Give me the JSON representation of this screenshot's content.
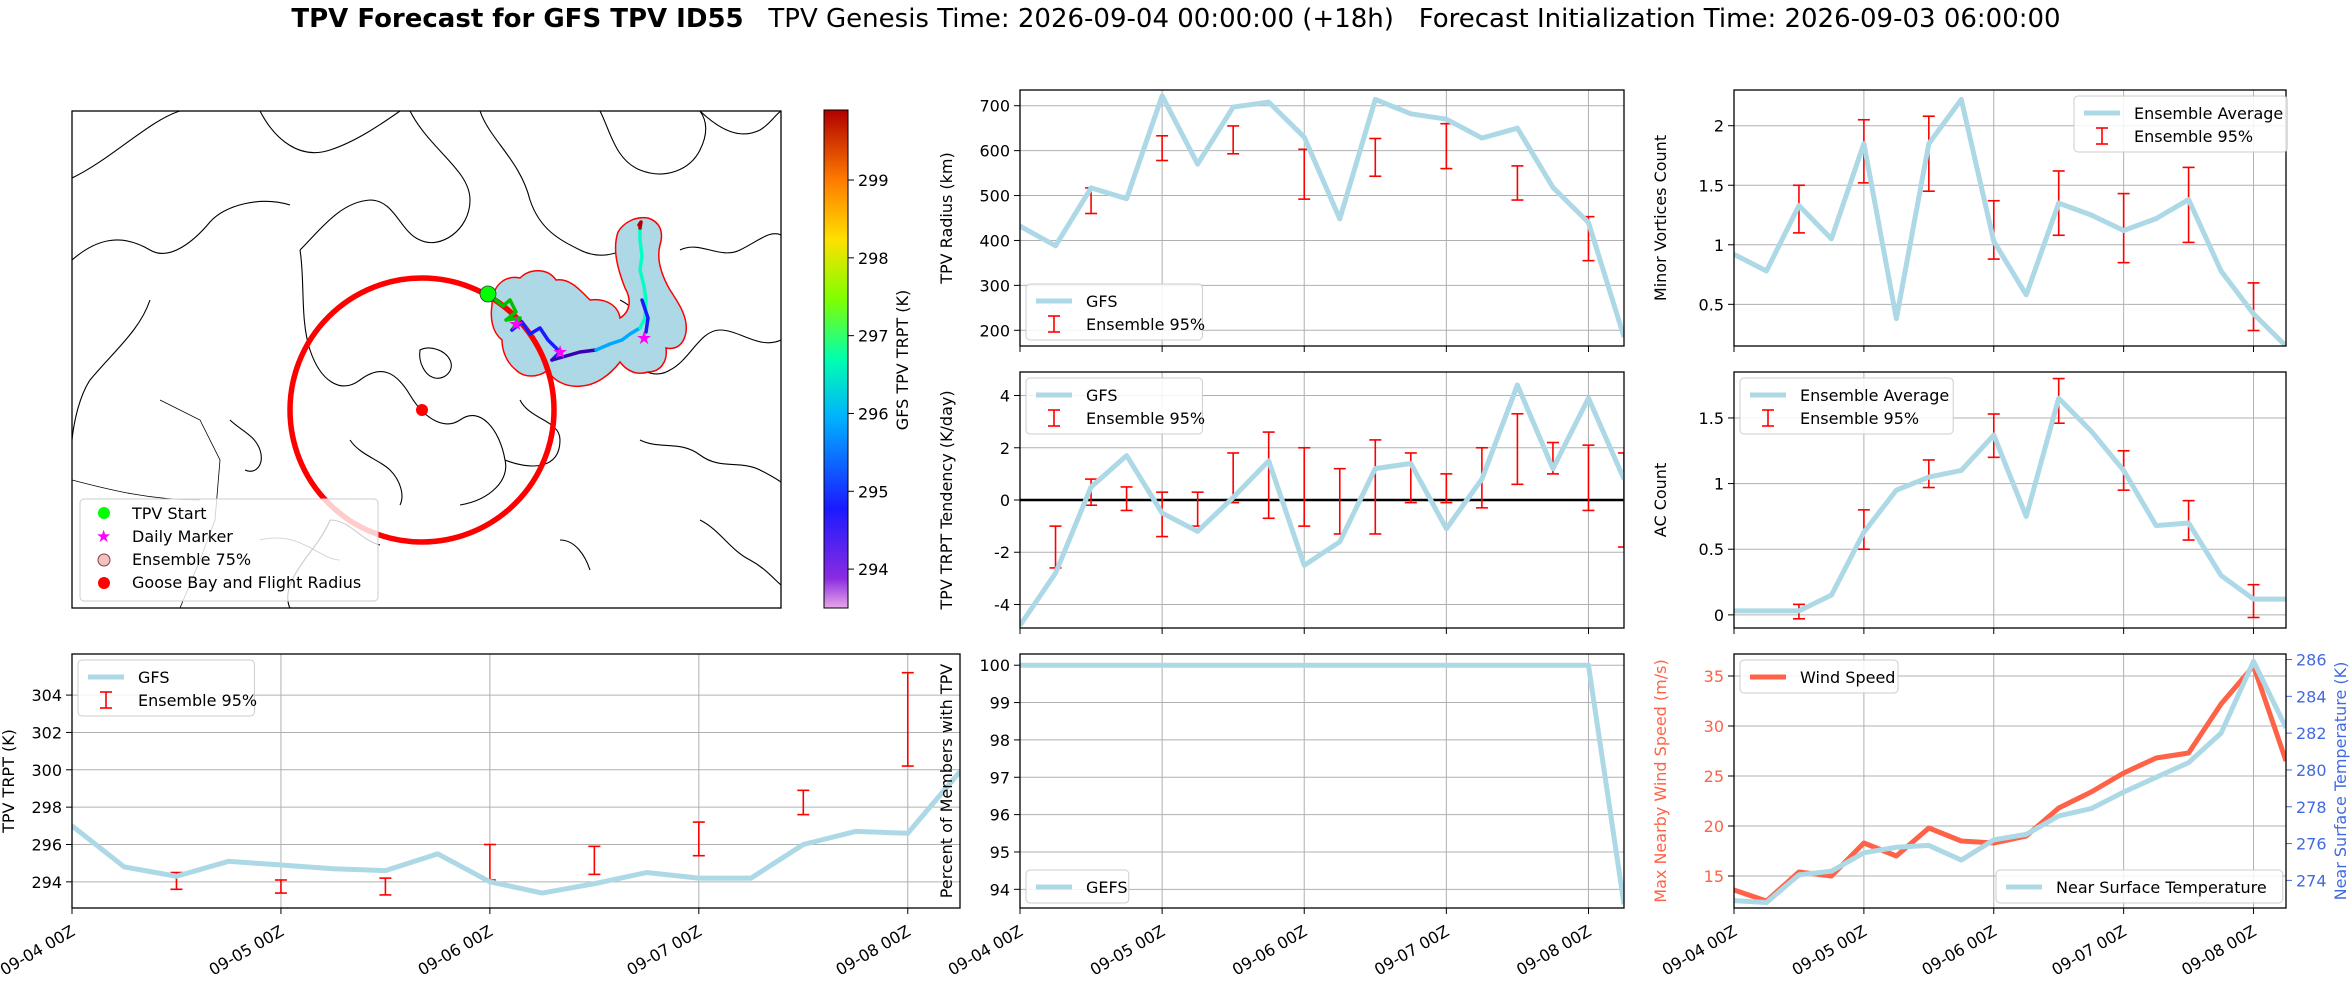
{
  "header": {
    "title_bold": "TPV Forecast for GFS TPV ID55",
    "title_rest": "   TPV Genesis Time: 2026-09-04 00:00:00 (+18h)   Forecast Initialization Time: 2026-09-03 06:00:00"
  },
  "colors": {
    "gfs_line": "#add8e6",
    "errorbar": "#ff0000",
    "wind": "#ff6347",
    "temp_axis": "#4169e1",
    "zero_line": "#000000",
    "radius_circle": "#ff0000"
  },
  "map": {
    "colorbar_label": "GFS TPV TRPT (K)",
    "colorbar_ticks": [
      "294",
      "295",
      "296",
      "297",
      "298",
      "299"
    ],
    "colorbar_range": [
      293.5,
      299.9
    ],
    "legend": [
      "TPV Start",
      "Daily Marker",
      "Ensemble 75%",
      "Goose Bay and Flight Radius"
    ]
  },
  "chart_data": [
    {
      "id": "radius",
      "type": "line",
      "ylabel": "TPV Radius (km)",
      "x": [
        "2026-09-04 00Z",
        "2026-09-04 06Z",
        "2026-09-04 12Z",
        "2026-09-04 18Z",
        "2026-09-05 00Z",
        "2026-09-05 06Z",
        "2026-09-05 12Z",
        "2026-09-05 18Z",
        "2026-09-06 00Z",
        "2026-09-06 06Z",
        "2026-09-06 12Z",
        "2026-09-06 18Z",
        "2026-09-07 00Z",
        "2026-09-07 06Z",
        "2026-09-07 12Z",
        "2026-09-07 18Z",
        "2026-09-08 00Z",
        "2026-09-08 06Z"
      ],
      "ylim": [
        165,
        735
      ],
      "yticks": [
        200,
        300,
        400,
        500,
        600,
        700
      ],
      "series": [
        {
          "name": "GFS",
          "values": [
            432,
            388,
            517,
            493,
            722,
            570,
            697,
            708,
            630,
            448,
            714,
            682,
            670,
            628,
            650,
            518,
            440,
            185
          ]
        }
      ],
      "errorbars": [
        [
          null,
          null
        ],
        [
          null,
          null
        ],
        [
          460,
          517
        ],
        [
          null,
          null
        ],
        [
          578,
          633
        ],
        [
          null,
          null
        ],
        [
          593,
          655
        ],
        [
          null,
          null
        ],
        [
          492,
          603
        ],
        [
          null,
          null
        ],
        [
          543,
          627
        ],
        [
          null,
          null
        ],
        [
          560,
          660
        ],
        [
          null,
          null
        ],
        [
          490,
          566
        ],
        [
          null,
          null
        ],
        [
          355,
          453
        ],
        [
          null,
          null
        ]
      ],
      "legend": {
        "line": "GFS",
        "errorbar": "Ensemble 95%",
        "position": "lower left"
      }
    },
    {
      "id": "minor",
      "type": "line",
      "ylabel": "Minor Vortices Count",
      "x": [
        "2026-09-04 00Z",
        "2026-09-04 06Z",
        "2026-09-04 12Z",
        "2026-09-04 18Z",
        "2026-09-05 00Z",
        "2026-09-05 06Z",
        "2026-09-05 12Z",
        "2026-09-05 18Z",
        "2026-09-06 00Z",
        "2026-09-06 06Z",
        "2026-09-06 12Z",
        "2026-09-06 18Z",
        "2026-09-07 00Z",
        "2026-09-07 06Z",
        "2026-09-07 12Z",
        "2026-09-07 18Z",
        "2026-09-08 00Z",
        "2026-09-08 06Z"
      ],
      "ylim": [
        0.15,
        2.3
      ],
      "yticks": [
        0.5,
        1.0,
        1.5,
        2.0
      ],
      "series": [
        {
          "name": "Ensemble Average",
          "values": [
            0.92,
            0.78,
            1.33,
            1.05,
            1.85,
            0.38,
            1.85,
            2.22,
            1.03,
            0.58,
            1.35,
            1.25,
            1.12,
            1.22,
            1.38,
            0.78,
            0.42,
            0.15
          ]
        }
      ],
      "errorbars": [
        [
          null,
          null
        ],
        [
          null,
          null
        ],
        [
          1.1,
          1.5
        ],
        [
          null,
          null
        ],
        [
          1.52,
          2.05
        ],
        [
          null,
          null
        ],
        [
          1.45,
          2.08
        ],
        [
          null,
          null
        ],
        [
          0.88,
          1.37
        ],
        [
          null,
          null
        ],
        [
          1.08,
          1.62
        ],
        [
          null,
          null
        ],
        [
          0.85,
          1.43
        ],
        [
          null,
          null
        ],
        [
          1.02,
          1.65
        ],
        [
          null,
          null
        ],
        [
          0.28,
          0.68
        ],
        [
          null,
          null
        ]
      ],
      "legend": {
        "line": "Ensemble Average",
        "errorbar": "Ensemble 95%",
        "position": "upper right"
      }
    },
    {
      "id": "tendency",
      "type": "line",
      "ylabel": "TPV TRPT Tendency (K/day)",
      "x": [
        "2026-09-04 00Z",
        "2026-09-04 06Z",
        "2026-09-04 12Z",
        "2026-09-04 18Z",
        "2026-09-05 00Z",
        "2026-09-05 06Z",
        "2026-09-05 12Z",
        "2026-09-05 18Z",
        "2026-09-06 00Z",
        "2026-09-06 06Z",
        "2026-09-06 12Z",
        "2026-09-06 18Z",
        "2026-09-07 00Z",
        "2026-09-07 06Z",
        "2026-09-07 12Z",
        "2026-09-07 18Z",
        "2026-09-08 00Z",
        "2026-09-08 06Z"
      ],
      "ylim": [
        -4.9,
        4.9
      ],
      "yticks": [
        -4,
        -2,
        0,
        2,
        4
      ],
      "series": [
        {
          "name": "GFS",
          "values": [
            -4.8,
            -2.8,
            0.5,
            1.7,
            -0.5,
            -1.2,
            0.1,
            1.5,
            -2.5,
            -1.6,
            1.2,
            1.4,
            -1.1,
            0.8,
            4.4,
            1.2,
            3.9,
            0.8
          ]
        }
      ],
      "errorbars": [
        [
          null,
          null
        ],
        [
          -2.6,
          -1.0
        ],
        [
          -0.2,
          0.8
        ],
        [
          -0.4,
          0.5
        ],
        [
          -1.4,
          0.3
        ],
        [
          -1.0,
          0.3
        ],
        [
          -0.1,
          1.8
        ],
        [
          -0.7,
          2.6
        ],
        [
          -1.0,
          2.0
        ],
        [
          -1.3,
          1.2
        ],
        [
          -1.3,
          2.3
        ],
        [
          -0.1,
          1.8
        ],
        [
          -0.1,
          1.0
        ],
        [
          -0.3,
          2.0
        ],
        [
          0.6,
          3.3
        ],
        [
          1.0,
          2.2
        ],
        [
          -0.4,
          2.1
        ],
        [
          -1.8,
          1.8
        ]
      ],
      "legend": {
        "line": "GFS",
        "errorbar": "Ensemble 95%",
        "position": "upper left"
      }
    },
    {
      "id": "ac",
      "type": "line",
      "ylabel": "AC Count",
      "x": [
        "2026-09-04 00Z",
        "2026-09-04 06Z",
        "2026-09-04 12Z",
        "2026-09-04 18Z",
        "2026-09-05 00Z",
        "2026-09-05 06Z",
        "2026-09-05 12Z",
        "2026-09-05 18Z",
        "2026-09-06 00Z",
        "2026-09-06 06Z",
        "2026-09-06 12Z",
        "2026-09-06 18Z",
        "2026-09-07 00Z",
        "2026-09-07 06Z",
        "2026-09-07 12Z",
        "2026-09-07 18Z",
        "2026-09-08 00Z",
        "2026-09-08 06Z"
      ],
      "ylim": [
        -0.1,
        1.85
      ],
      "yticks": [
        0.0,
        0.5,
        1.0,
        1.5
      ],
      "series": [
        {
          "name": "Ensemble Average",
          "values": [
            0.03,
            0.03,
            0.03,
            0.15,
            0.63,
            0.95,
            1.05,
            1.1,
            1.37,
            0.75,
            1.65,
            1.4,
            1.1,
            0.68,
            0.7,
            0.3,
            0.12,
            0.12
          ]
        }
      ],
      "errorbars": [
        [
          null,
          null
        ],
        [
          null,
          null
        ],
        [
          -0.03,
          0.08
        ],
        [
          null,
          null
        ],
        [
          0.5,
          0.8
        ],
        [
          null,
          null
        ],
        [
          0.97,
          1.18
        ],
        [
          null,
          null
        ],
        [
          1.2,
          1.53
        ],
        [
          null,
          null
        ],
        [
          1.46,
          1.8
        ],
        [
          null,
          null
        ],
        [
          0.95,
          1.25
        ],
        [
          null,
          null
        ],
        [
          0.57,
          0.87
        ],
        [
          null,
          null
        ],
        [
          -0.02,
          0.23
        ],
        [
          null,
          null
        ]
      ],
      "legend": {
        "line": "Ensemble Average",
        "errorbar": "Ensemble 95%",
        "position": "upper left"
      }
    },
    {
      "id": "trpt",
      "type": "line",
      "ylabel": "TPV TRPT (K)",
      "x": [
        "2026-09-04 00Z",
        "2026-09-04 06Z",
        "2026-09-04 12Z",
        "2026-09-04 18Z",
        "2026-09-05 00Z",
        "2026-09-05 06Z",
        "2026-09-05 12Z",
        "2026-09-05 18Z",
        "2026-09-06 00Z",
        "2026-09-06 06Z",
        "2026-09-06 12Z",
        "2026-09-06 18Z",
        "2026-09-07 00Z",
        "2026-09-07 06Z",
        "2026-09-07 12Z",
        "2026-09-07 18Z",
        "2026-09-08 00Z",
        "2026-09-08 06Z"
      ],
      "ylim": [
        292.6,
        306.2
      ],
      "yticks": [
        294,
        296,
        298,
        300,
        302,
        304
      ],
      "series": [
        {
          "name": "GFS",
          "values": [
            297.0,
            294.8,
            294.3,
            295.1,
            294.9,
            294.7,
            294.6,
            295.5,
            294.0,
            293.4,
            293.9,
            294.5,
            294.2,
            294.2,
            296.0,
            296.7,
            296.6,
            299.9
          ]
        }
      ],
      "errorbars": [
        [
          null,
          null
        ],
        [
          null,
          null
        ],
        [
          293.6,
          294.5
        ],
        [
          null,
          null
        ],
        [
          293.4,
          294.1
        ],
        [
          null,
          null
        ],
        [
          293.3,
          294.2
        ],
        [
          null,
          null
        ],
        [
          294.1,
          296.0
        ],
        [
          null,
          null
        ],
        [
          294.4,
          295.9
        ],
        [
          null,
          null
        ],
        [
          295.4,
          297.2
        ],
        [
          null,
          null
        ],
        [
          297.6,
          298.9
        ],
        [
          null,
          null
        ],
        [
          300.2,
          305.2
        ],
        [
          null,
          null
        ]
      ],
      "legend": {
        "line": "GFS",
        "errorbar": "Ensemble 95%",
        "position": "upper left"
      }
    },
    {
      "id": "percent",
      "type": "line",
      "ylabel": "Percent of Members with TPV",
      "x": [
        "2026-09-04 00Z",
        "2026-09-04 06Z",
        "2026-09-04 12Z",
        "2026-09-04 18Z",
        "2026-09-05 00Z",
        "2026-09-05 06Z",
        "2026-09-05 12Z",
        "2026-09-05 18Z",
        "2026-09-06 00Z",
        "2026-09-06 06Z",
        "2026-09-06 12Z",
        "2026-09-06 18Z",
        "2026-09-07 00Z",
        "2026-09-07 06Z",
        "2026-09-07 12Z",
        "2026-09-07 18Z",
        "2026-09-08 00Z",
        "2026-09-08 06Z"
      ],
      "ylim": [
        93.5,
        100.3
      ],
      "yticks": [
        94,
        95,
        96,
        97,
        98,
        99,
        100
      ],
      "series": [
        {
          "name": "GEFS",
          "values": [
            100,
            100,
            100,
            100,
            100,
            100,
            100,
            100,
            100,
            100,
            100,
            100,
            100,
            100,
            100,
            100,
            100,
            93.6
          ]
        }
      ],
      "legend": {
        "line": "GEFS",
        "position": "lower left"
      }
    },
    {
      "id": "wind",
      "type": "line",
      "ylabel": "Max Nearby Wind Speed (m/s)",
      "ylabel2": "Near Surface Temperature (K)",
      "x": [
        "2026-09-04 00Z",
        "2026-09-04 06Z",
        "2026-09-04 12Z",
        "2026-09-04 18Z",
        "2026-09-05 00Z",
        "2026-09-05 06Z",
        "2026-09-05 12Z",
        "2026-09-05 18Z",
        "2026-09-06 00Z",
        "2026-09-06 06Z",
        "2026-09-06 12Z",
        "2026-09-06 18Z",
        "2026-09-07 00Z",
        "2026-09-07 06Z",
        "2026-09-07 12Z",
        "2026-09-07 18Z",
        "2026-09-08 00Z",
        "2026-09-08 06Z"
      ],
      "ylim": [
        11.8,
        37.2
      ],
      "yticks": [
        15,
        20,
        25,
        30,
        35
      ],
      "ylim2": [
        272.5,
        286.3
      ],
      "yticks2": [
        274,
        276,
        278,
        280,
        282,
        284,
        286
      ],
      "series": [
        {
          "name": "Wind Speed",
          "axis": "left",
          "values": [
            13.6,
            12.5,
            15.4,
            15.0,
            18.3,
            17.0,
            19.8,
            18.5,
            18.3,
            19.0,
            21.8,
            23.4,
            25.3,
            26.8,
            27.3,
            32.2,
            36.0,
            26.5
          ]
        },
        {
          "name": "Near Surface Temperature",
          "axis": "right",
          "values": [
            272.9,
            272.8,
            274.3,
            274.5,
            275.5,
            275.8,
            275.9,
            275.1,
            276.2,
            276.5,
            277.5,
            277.9,
            278.8,
            279.6,
            280.4,
            282.0,
            285.9,
            282.3
          ]
        }
      ],
      "legend": {
        "line": "Wind Speed",
        "line2": "Near Surface Temperature",
        "position": "upper left / lower right"
      }
    }
  ],
  "axes": {
    "xtick_labels": [
      "09-04 00Z",
      "09-05 00Z",
      "09-06 00Z",
      "09-07 00Z",
      "09-08 00Z"
    ]
  }
}
